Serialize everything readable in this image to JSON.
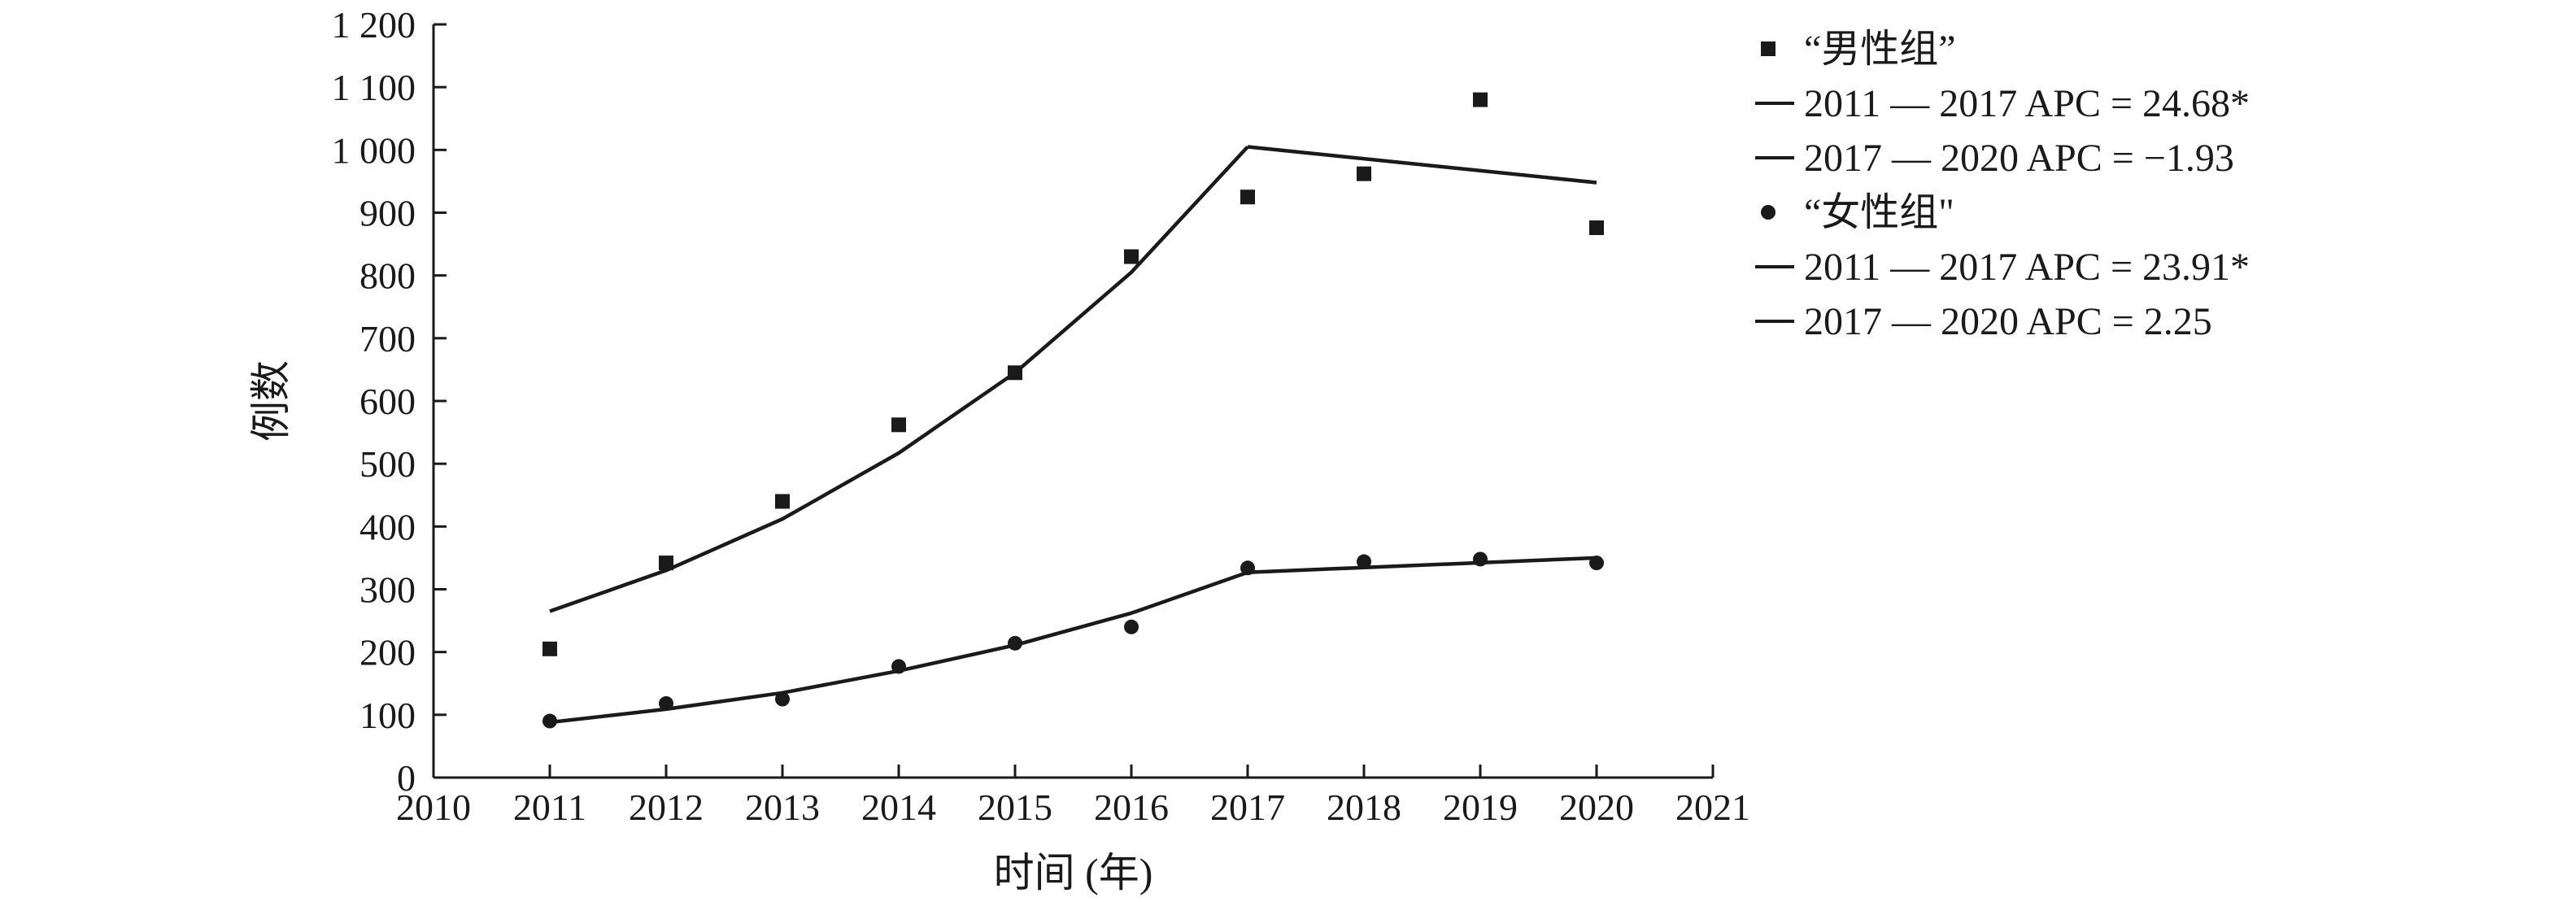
{
  "chart_data": {
    "type": "scatter",
    "title": "",
    "xlabel": "时间 (年)",
    "ylabel": "例数",
    "xlim": [
      2010,
      2021
    ],
    "ylim": [
      0,
      1200
    ],
    "x_ticks": [
      "2010",
      "2011",
      "2012",
      "2013",
      "2014",
      "2015",
      "2016",
      "2017",
      "2018",
      "2019",
      "2020",
      "2021"
    ],
    "y_ticks": [
      "0",
      "100",
      "200",
      "300",
      "400",
      "500",
      "600",
      "700",
      "800",
      "900",
      "1 000",
      "1 100",
      "1 200"
    ],
    "grid": false,
    "legend_position": "right",
    "series": [
      {
        "name": "“男性组”",
        "kind": "points",
        "marker": "square",
        "x": [
          2011,
          2012,
          2013,
          2014,
          2015,
          2016,
          2017,
          2018,
          2019,
          2020
        ],
        "y": [
          205,
          342,
          440,
          562,
          645,
          830,
          925,
          962,
          1080,
          876
        ]
      },
      {
        "name": "2011 — 2017 APC = 24.68*",
        "kind": "line",
        "x": [
          2011,
          2012,
          2013,
          2014,
          2015,
          2016,
          2017
        ],
        "y": [
          265,
          330,
          412,
          517,
          645,
          805,
          1005
        ]
      },
      {
        "name": "2017 — 2020 APC = −1.93",
        "kind": "line",
        "x": [
          2017,
          2020
        ],
        "y": [
          1005,
          948
        ]
      },
      {
        "name": "“女性组\"",
        "kind": "points",
        "marker": "circle",
        "x": [
          2011,
          2012,
          2013,
          2014,
          2015,
          2016,
          2017,
          2018,
          2019,
          2020
        ],
        "y": [
          90,
          118,
          125,
          177,
          214,
          240,
          334,
          344,
          348,
          342
        ]
      },
      {
        "name": "2011 — 2017 APC = 23.91*",
        "kind": "line",
        "x": [
          2011,
          2012,
          2013,
          2014,
          2015,
          2016,
          2017
        ],
        "y": [
          88,
          109,
          135,
          170,
          211,
          262,
          327
        ]
      },
      {
        "name": "2017 — 2020 APC = 2.25",
        "kind": "line",
        "x": [
          2017,
          2020
        ],
        "y": [
          327,
          350
        ]
      }
    ]
  }
}
